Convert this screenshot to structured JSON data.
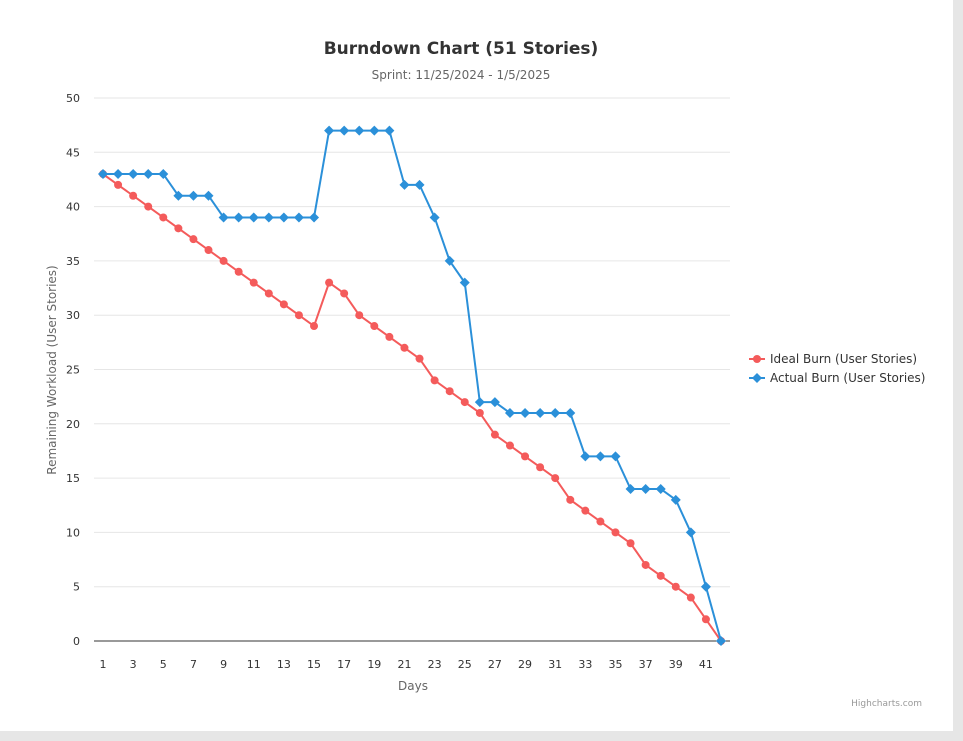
{
  "chart_data": {
    "type": "line",
    "title": "Burndown Chart (51 Stories)",
    "subtitle": "Sprint: 11/25/2024 - 1/5/2025",
    "xlabel": "Days",
    "ylabel": "Remaining Workload (User Stories)",
    "xlim": [
      1,
      42
    ],
    "ylim": [
      0,
      50
    ],
    "x_ticks": [
      1,
      3,
      5,
      7,
      9,
      11,
      13,
      15,
      17,
      19,
      21,
      23,
      25,
      27,
      29,
      31,
      33,
      35,
      37,
      39,
      41
    ],
    "y_ticks": [
      0,
      5,
      10,
      15,
      20,
      25,
      30,
      35,
      40,
      45,
      50
    ],
    "grid": true,
    "legend_position": "right",
    "x": [
      1,
      2,
      3,
      4,
      5,
      6,
      7,
      8,
      9,
      10,
      11,
      12,
      13,
      14,
      15,
      16,
      17,
      18,
      19,
      20,
      21,
      22,
      23,
      24,
      25,
      26,
      27,
      28,
      29,
      30,
      31,
      32,
      33,
      34,
      35,
      36,
      37,
      38,
      39,
      40,
      41,
      42
    ],
    "series": [
      {
        "name": "Ideal Burn (User Stories)",
        "color": "#f45b5b",
        "marker": "circle",
        "values": [
          43,
          42,
          41,
          40,
          39,
          38,
          37,
          36,
          35,
          34,
          33,
          32,
          31,
          30,
          29,
          33,
          32,
          30,
          29,
          28,
          27,
          26,
          24,
          23,
          22,
          21,
          19,
          18,
          17,
          16,
          15,
          13,
          12,
          11,
          10,
          9,
          7,
          6,
          5,
          4,
          2,
          0
        ]
      },
      {
        "name": "Actual Burn (User Stories)",
        "color": "#2b90d9",
        "marker": "diamond",
        "values": [
          43,
          43,
          43,
          43,
          43,
          41,
          41,
          41,
          39,
          39,
          39,
          39,
          39,
          39,
          39,
          47,
          47,
          47,
          47,
          47,
          42,
          42,
          39,
          35,
          33,
          22,
          22,
          21,
          21,
          21,
          21,
          21,
          17,
          17,
          17,
          14,
          14,
          14,
          13,
          10,
          5,
          0
        ]
      }
    ]
  },
  "credits": "Highcharts.com"
}
